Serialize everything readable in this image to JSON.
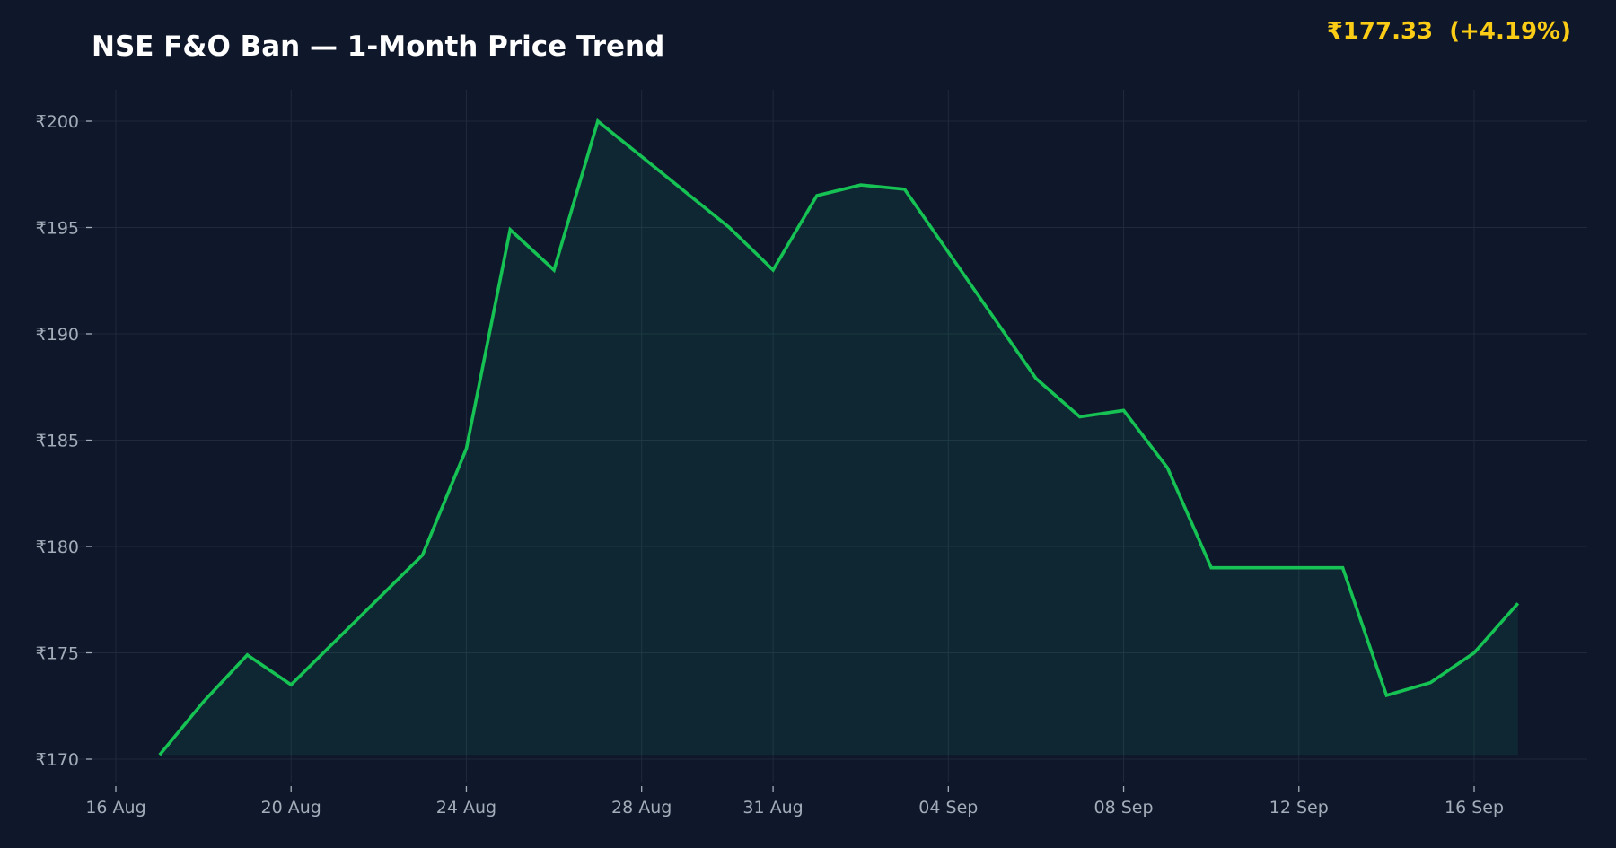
{
  "header": {
    "title": "NSE F&O Ban — 1-Month Price Trend",
    "price_badge": "₹177.33  (+4.19%)"
  },
  "colors": {
    "background": "#0f172a",
    "line": "#16c253",
    "fill": "#10b981",
    "grid": "#1f2a3c",
    "tick_text": "#a3acb9",
    "badge": "#facc15"
  },
  "chart_data": {
    "type": "line",
    "title": "NSE F&O Ban — 1-Month Price Trend",
    "xlabel": "",
    "ylabel": "",
    "x_tick_labels": [
      "16 Aug",
      "20 Aug",
      "24 Aug",
      "28 Aug",
      "31 Aug",
      "04 Sep",
      "08 Sep",
      "12 Sep",
      "16 Sep"
    ],
    "x_tick_dates": [
      "2025-08-16",
      "2025-08-20",
      "2025-08-24",
      "2025-08-28",
      "2025-08-31",
      "2025-09-04",
      "2025-09-08",
      "2025-09-12",
      "2025-09-16"
    ],
    "y_tick_labels": [
      "₹170",
      "₹175",
      "₹180",
      "₹185",
      "₹190",
      "₹195",
      "₹200"
    ],
    "y_tick_values": [
      170,
      175,
      180,
      185,
      190,
      195,
      200
    ],
    "xlim": [
      "2025-08-16",
      "2025-09-18"
    ],
    "ylim": [
      169,
      201.5
    ],
    "grid": true,
    "area_fill": true,
    "series": [
      {
        "points": [
          [
            "2025-08-17",
            170.2
          ],
          [
            "2025-08-18",
            172.7
          ],
          [
            "2025-08-19",
            174.9
          ],
          [
            "2025-08-20",
            173.5
          ],
          [
            "2025-08-23",
            179.6
          ],
          [
            "2025-08-24",
            184.6
          ],
          [
            "2025-08-25",
            194.9
          ],
          [
            "2025-08-26",
            193.0
          ],
          [
            "2025-08-27",
            200.0
          ],
          [
            "2025-08-30",
            195.0
          ],
          [
            "2025-08-31",
            193.0
          ],
          [
            "2025-09-01",
            196.5
          ],
          [
            "2025-09-02",
            197.0
          ],
          [
            "2025-09-03",
            196.8
          ],
          [
            "2025-09-06",
            187.9
          ],
          [
            "2025-09-07",
            186.1
          ],
          [
            "2025-09-08",
            186.4
          ],
          [
            "2025-09-09",
            183.7
          ],
          [
            "2025-09-10",
            179.0
          ],
          [
            "2025-09-13",
            179.0
          ],
          [
            "2025-09-14",
            173.0
          ],
          [
            "2025-09-15",
            173.6
          ],
          [
            "2025-09-16",
            175.0
          ],
          [
            "2025-09-17",
            177.33
          ]
        ]
      }
    ]
  }
}
